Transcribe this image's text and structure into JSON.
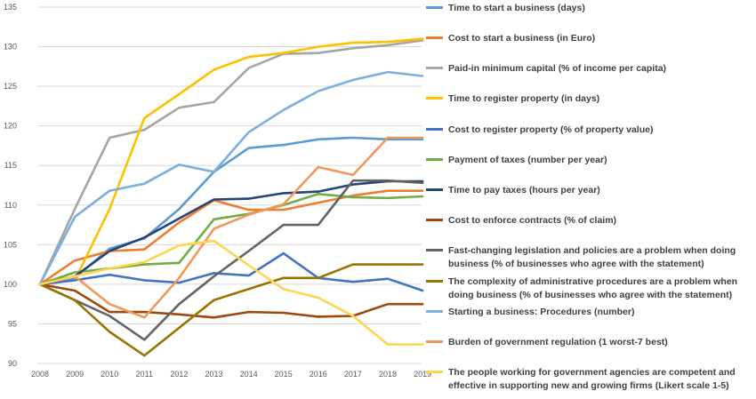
{
  "chart_data": {
    "type": "line",
    "title": "",
    "xlabel": "",
    "ylabel": "",
    "x": [
      "2008",
      "2009",
      "2010",
      "2011",
      "2012",
      "2013",
      "2014",
      "2015",
      "2016",
      "2017",
      "2018",
      "2019"
    ],
    "ylim": [
      90,
      135
    ],
    "yticks": [
      90,
      95,
      100,
      105,
      110,
      115,
      120,
      125,
      130,
      135
    ],
    "grid": true,
    "legend_position": "right",
    "series": [
      {
        "name": "Time to start a business (days)",
        "color": "#5b9bd5",
        "values": [
          100,
          100.8,
          104.5,
          105.8,
          109.5,
          114.2,
          117.2,
          117.6,
          118.3,
          118.5,
          118.3,
          118.3
        ]
      },
      {
        "name": "Cost to start a business (in Euro)",
        "color": "#ed7d31",
        "values": [
          100,
          103,
          104.2,
          104.4,
          107.8,
          110.6,
          109.4,
          109.4,
          110.3,
          111.2,
          111.8,
          111.8
        ]
      },
      {
        "name": "Paid-in minimum capital (% of income per capita)",
        "color": "#a5a5a5",
        "values": [
          100,
          109.5,
          118.5,
          119.5,
          122.3,
          123,
          127.3,
          129.1,
          129.2,
          129.8,
          130.2,
          130.8
        ]
      },
      {
        "name": "Time to register property (in days)",
        "color": "#ffc000",
        "values": [
          100,
          100.5,
          109.5,
          121,
          124,
          127.1,
          128.7,
          129.2,
          130,
          130.5,
          130.6,
          131
        ]
      },
      {
        "name": "Cost to register property (% of property value)",
        "color": "#4472c4",
        "values": [
          100,
          100.5,
          101.2,
          100.5,
          100.2,
          101.4,
          101.1,
          103.9,
          100.8,
          100.3,
          100.7,
          99.2
        ]
      },
      {
        "name": "Payment of taxes (number per year)",
        "color": "#70ad47",
        "values": [
          100,
          101.5,
          102,
          102.5,
          102.7,
          108.2,
          108.9,
          110,
          111.4,
          111,
          110.9,
          111.1
        ]
      },
      {
        "name": "Time to pay taxes (hours per year)",
        "color": "#264478",
        "values": [
          100,
          101,
          104.2,
          105.9,
          108.3,
          110.7,
          110.8,
          111.5,
          111.7,
          112.6,
          113,
          113
        ]
      },
      {
        "name": "Cost to enforce contracts (% of claim)",
        "color": "#9e480e",
        "values": [
          100,
          99.2,
          96.5,
          96.5,
          96.2,
          95.8,
          96.5,
          96.4,
          95.9,
          96,
          97.5,
          97.5
        ]
      },
      {
        "name": "Fast-changing legislation and policies are a problem when doing business (% of businesses who agree with the statement)",
        "color": "#636363",
        "values": [
          100,
          98,
          96,
          93,
          97.5,
          101,
          104.2,
          107.5,
          107.5,
          113.1,
          113.1,
          112.8
        ]
      },
      {
        "name": "The complexity of administrative procedures are a problem when doing business (% of businesses who agree with the statement)",
        "color": "#997300",
        "values": [
          100,
          98,
          94,
          91,
          94.5,
          98,
          99.4,
          100.8,
          100.8,
          102.5,
          102.5,
          102.5
        ]
      },
      {
        "name": "Starting a business: Procedures (number)",
        "color": "#7cafdd",
        "values": [
          100,
          108.5,
          111.8,
          112.7,
          115.1,
          114.2,
          119.2,
          122,
          124.4,
          125.8,
          126.8,
          126.3
        ]
      },
      {
        "name": "Burden of government regulation (1 worst-7 best)",
        "color": "#f1975a",
        "values": [
          100,
          101,
          97.5,
          95.8,
          100.8,
          107,
          108.8,
          110.1,
          114.8,
          113.8,
          118.5,
          118.5
        ]
      },
      {
        "name": "The people working for government agencies are competent and effective in supporting new and growing firms (Likert scale 1-5)",
        "color": "#ffd44f",
        "values": [
          100,
          101,
          102,
          102.8,
          104.9,
          105.5,
          102.4,
          99.4,
          98.3,
          96,
          92.4,
          92.4
        ]
      }
    ],
    "legend_lines": [
      [
        "Time to start a business (days)"
      ],
      [
        "Cost to start a business (in Euro)"
      ],
      [
        "Paid-in minimum capital (% of income per capita)"
      ],
      [
        "Time to register property (in days)"
      ],
      [
        "Cost to register property (% of property value)"
      ],
      [
        "Payment of taxes (number per year)"
      ],
      [
        "Time to pay taxes (hours per year)"
      ],
      [
        "Cost to enforce contracts (% of claim)"
      ],
      [
        "Fast-changing legislation and policies are a problem when doing",
        "business (% of businesses who agree with the statement)"
      ],
      [
        "The complexity of administrative procedures are a problem when",
        "doing business (% of businesses who agree with the statement)"
      ],
      [
        "Starting a business: Procedures (number)"
      ],
      [
        "Burden of government regulation (1 worst-7 best)"
      ],
      [
        "The people working for government agencies are competent and",
        "effective in supporting new and growing firms (Likert scale 1-5)"
      ]
    ]
  }
}
